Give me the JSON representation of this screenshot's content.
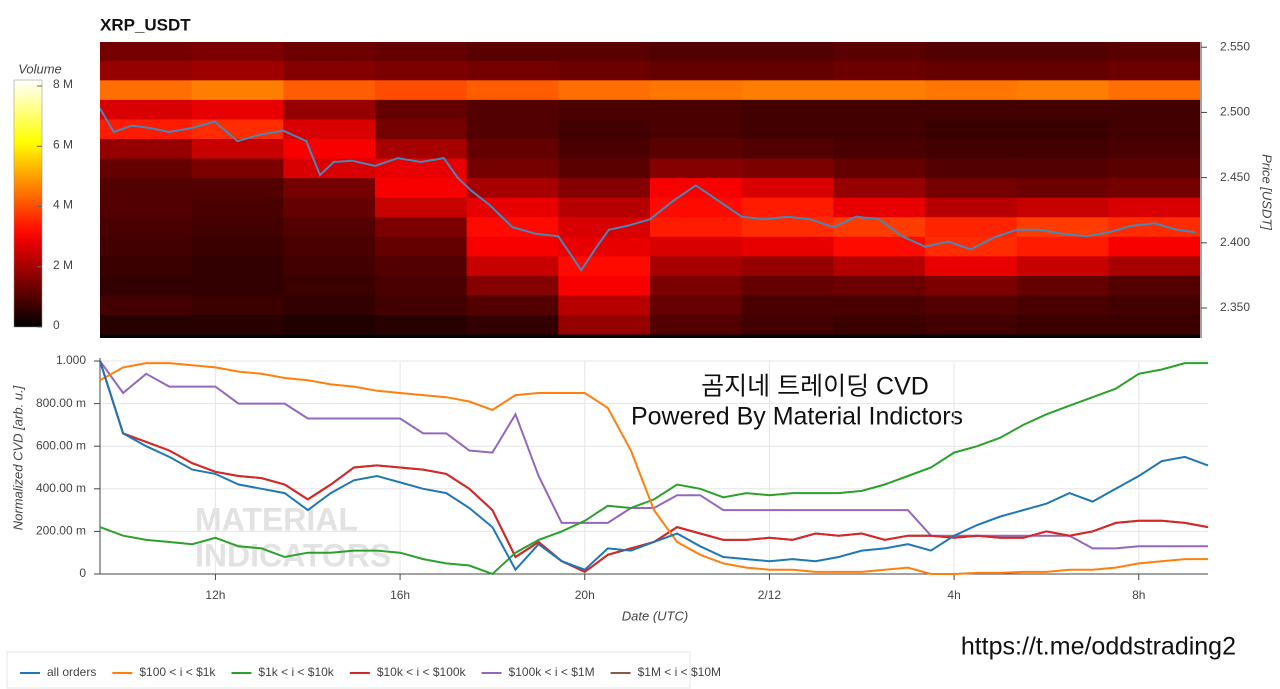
{
  "chart_data": [
    {
      "type": "heatmap",
      "title": "XRP_USDT",
      "xlim": [
        9.5,
        33.5
      ],
      "ylim": [
        2.327,
        2.554
      ],
      "x_bins": [
        9.5,
        11.5,
        13.5,
        15.5,
        17.5,
        19.5,
        21.5,
        23.5,
        25.5,
        27.5,
        29.5,
        31.5,
        33.5
      ],
      "y_bins": [
        2.33,
        2.345,
        2.36,
        2.375,
        2.39,
        2.405,
        2.42,
        2.435,
        2.45,
        2.465,
        2.48,
        2.495,
        2.51,
        2.525,
        2.54,
        2.555
      ],
      "z": [
        [
          0.5,
          0.5,
          0.4,
          0.5,
          0.6,
          1.8,
          1.0,
          0.8,
          0.7,
          0.8,
          0.7,
          0.7
        ],
        [
          0.8,
          0.7,
          0.6,
          0.8,
          1.0,
          2.2,
          1.2,
          0.9,
          0.9,
          1.0,
          0.9,
          0.8
        ],
        [
          0.6,
          0.6,
          0.7,
          0.9,
          1.6,
          3.0,
          1.5,
          1.2,
          1.3,
          1.5,
          1.2,
          1.0
        ],
        [
          0.7,
          0.6,
          0.8,
          1.0,
          2.4,
          3.2,
          2.0,
          1.8,
          2.2,
          2.8,
          2.4,
          2.0
        ],
        [
          0.8,
          0.7,
          0.9,
          1.2,
          3.0,
          2.8,
          2.6,
          2.8,
          3.2,
          3.6,
          3.4,
          3.0
        ],
        [
          0.9,
          0.8,
          1.0,
          1.5,
          3.2,
          2.6,
          3.4,
          3.6,
          3.8,
          3.5,
          3.8,
          3.6
        ],
        [
          1.0,
          0.9,
          1.2,
          2.4,
          2.8,
          2.2,
          3.2,
          3.4,
          2.8,
          2.2,
          2.4,
          2.6
        ],
        [
          1.0,
          1.0,
          1.4,
          3.0,
          2.0,
          1.6,
          3.0,
          2.6,
          1.8,
          1.4,
          1.3,
          1.4
        ],
        [
          1.2,
          1.5,
          2.6,
          2.8,
          1.4,
          1.1,
          1.6,
          1.5,
          1.2,
          1.0,
          1.0,
          1.1
        ],
        [
          1.8,
          2.4,
          3.0,
          2.0,
          1.2,
          0.9,
          1.1,
          1.0,
          0.9,
          0.8,
          0.8,
          0.9
        ],
        [
          3.4,
          3.6,
          2.6,
          1.4,
          1.0,
          0.8,
          0.9,
          0.8,
          0.8,
          0.7,
          0.7,
          0.8
        ],
        [
          2.6,
          2.8,
          1.8,
          1.2,
          1.0,
          0.9,
          0.9,
          0.8,
          0.8,
          0.8,
          0.8,
          0.8
        ],
        [
          4.4,
          4.6,
          4.2,
          4.0,
          4.2,
          4.4,
          4.5,
          4.6,
          4.6,
          4.5,
          4.6,
          4.4
        ],
        [
          1.8,
          1.9,
          1.6,
          1.5,
          1.4,
          1.3,
          1.2,
          1.2,
          1.3,
          1.2,
          1.2,
          1.3
        ],
        [
          1.4,
          1.5,
          1.3,
          1.2,
          1.1,
          1.1,
          1.0,
          1.0,
          1.1,
          1.0,
          1.0,
          1.1
        ]
      ],
      "colormap": "hot",
      "clim": [
        0,
        8.2
      ],
      "colorbar_label": "Volume",
      "colorbar_ticks": [
        0,
        {
          "value": 2,
          "label": "2 M"
        },
        {
          "value": 4,
          "label": "4 M"
        },
        {
          "value": 6,
          "label": "6 M"
        },
        {
          "value": 8,
          "label": "8 M"
        }
      ],
      "ylabel": "Price [USDT]",
      "yticks": [
        {
          "value": 2.35,
          "label": "2.350"
        },
        {
          "value": 2.4,
          "label": "2.400"
        },
        {
          "value": 2.45,
          "label": "2.450"
        },
        {
          "value": 2.5,
          "label": "2.500"
        },
        {
          "value": 2.55,
          "label": "2.550"
        }
      ],
      "price": {
        "color": "#4a86b8",
        "x": [
          9.5,
          9.8,
          10.2,
          10.6,
          11.0,
          11.5,
          12.0,
          12.5,
          13,
          13.5,
          14,
          14.3,
          14.6,
          15,
          15.5,
          16,
          16.5,
          17,
          17.3,
          17.6,
          18,
          18.5,
          19,
          19.5,
          20,
          20.3,
          20.6,
          21,
          21.5,
          22,
          22.5,
          23,
          23.5,
          24,
          24.5,
          25,
          25.5,
          26,
          26.5,
          27,
          27.5,
          28,
          28.5,
          29,
          29.5,
          30,
          30.5,
          31,
          31.5,
          32,
          32.5,
          33,
          33.4
        ],
        "values": [
          2.503,
          2.485,
          2.49,
          2.488,
          2.485,
          2.488,
          2.493,
          2.478,
          2.483,
          2.486,
          2.478,
          2.452,
          2.462,
          2.463,
          2.459,
          2.465,
          2.462,
          2.465,
          2.45,
          2.44,
          2.429,
          2.412,
          2.407,
          2.405,
          2.379,
          2.395,
          2.41,
          2.413,
          2.418,
          2.432,
          2.444,
          2.432,
          2.42,
          2.418,
          2.42,
          2.418,
          2.412,
          2.42,
          2.418,
          2.405,
          2.397,
          2.401,
          2.395,
          2.404,
          2.41,
          2.41,
          2.407,
          2.405,
          2.408,
          2.413,
          2.415,
          2.41,
          2.408
        ]
      }
    },
    {
      "type": "line",
      "xlabel": "Date (UTC)",
      "ylabel": "Normalized CVD [arb. u.]",
      "xlim": [
        9.5,
        33.5
      ],
      "ylim": [
        0,
        1
      ],
      "xticks": [
        {
          "value": 12,
          "label": "12h"
        },
        {
          "value": 16,
          "label": "16h"
        },
        {
          "value": 20,
          "label": "20h"
        },
        {
          "value": 24,
          "label": "2/12"
        },
        {
          "value": 28,
          "label": "4h"
        },
        {
          "value": 32,
          "label": "8h"
        }
      ],
      "yticks": [
        0,
        {
          "value": 0.2,
          "label": "200.00 m"
        },
        {
          "value": 0.4,
          "label": "400.00 m"
        },
        {
          "value": 0.6,
          "label": "600.00 m"
        },
        {
          "value": 0.8,
          "label": "800.00 m"
        },
        {
          "value": 1,
          "label": "1.000"
        }
      ],
      "grid": true,
      "legend": "bottom",
      "x": [
        9.5,
        10,
        10.5,
        11,
        11.5,
        12,
        12.5,
        13,
        13.5,
        14,
        14.5,
        15,
        15.5,
        16,
        16.5,
        17,
        17.5,
        18,
        18.5,
        19,
        19.5,
        20,
        20.5,
        21,
        21.5,
        22,
        22.5,
        23,
        23.5,
        24,
        24.5,
        25,
        25.5,
        26,
        26.5,
        27,
        27.5,
        28,
        28.5,
        29,
        29.5,
        30,
        30.5,
        31,
        31.5,
        32,
        32.5,
        33,
        33.5
      ],
      "series": [
        {
          "name": "all orders",
          "color": "#1f77b4",
          "values": [
            1.0,
            0.66,
            0.6,
            0.55,
            0.49,
            0.47,
            0.42,
            0.4,
            0.38,
            0.3,
            0.38,
            0.44,
            0.46,
            0.43,
            0.4,
            0.38,
            0.31,
            0.22,
            0.02,
            0.14,
            0.06,
            0.02,
            0.12,
            0.11,
            0.15,
            0.19,
            0.13,
            0.08,
            0.07,
            0.06,
            0.07,
            0.06,
            0.08,
            0.11,
            0.12,
            0.14,
            0.11,
            0.18,
            0.23,
            0.27,
            0.3,
            0.33,
            0.38,
            0.34,
            0.4,
            0.46,
            0.53,
            0.55,
            0.51
          ]
        },
        {
          "name": "$100 < i < $1k",
          "color": "#ff7f0e",
          "values": [
            0.91,
            0.97,
            0.99,
            0.99,
            0.98,
            0.97,
            0.95,
            0.94,
            0.92,
            0.91,
            0.89,
            0.88,
            0.86,
            0.85,
            0.84,
            0.83,
            0.81,
            0.77,
            0.84,
            0.85,
            0.85,
            0.85,
            0.78,
            0.58,
            0.3,
            0.15,
            0.09,
            0.05,
            0.03,
            0.02,
            0.02,
            0.01,
            0.01,
            0.01,
            0.02,
            0.03,
            0,
            0,
            0.005,
            0.005,
            0.01,
            0.01,
            0.02,
            0.02,
            0.03,
            0.05,
            0.06,
            0.07,
            0.07
          ]
        },
        {
          "name": "$1k < i < $10k",
          "color": "#2ca02c",
          "values": [
            0.22,
            0.18,
            0.16,
            0.15,
            0.14,
            0.17,
            0.13,
            0.12,
            0.08,
            0.1,
            0.1,
            0.11,
            0.11,
            0.1,
            0.07,
            0.05,
            0.04,
            0,
            0.1,
            0.16,
            0.2,
            0.25,
            0.32,
            0.31,
            0.35,
            0.42,
            0.4,
            0.36,
            0.38,
            0.37,
            0.38,
            0.38,
            0.38,
            0.39,
            0.42,
            0.46,
            0.5,
            0.57,
            0.6,
            0.64,
            0.7,
            0.75,
            0.79,
            0.83,
            0.87,
            0.94,
            0.96,
            0.99,
            0.99
          ]
        },
        {
          "name": "$10k < i < $100k",
          "color": "#d62728",
          "values": [
            1.0,
            0.66,
            0.62,
            0.58,
            0.52,
            0.48,
            0.46,
            0.45,
            0.42,
            0.35,
            0.42,
            0.5,
            0.51,
            0.5,
            0.49,
            0.47,
            0.4,
            0.3,
            0.08,
            0.15,
            0.06,
            0.01,
            0.09,
            0.12,
            0.15,
            0.22,
            0.19,
            0.16,
            0.16,
            0.17,
            0.16,
            0.19,
            0.18,
            0.19,
            0.16,
            0.18,
            0.18,
            0.17,
            0.18,
            0.17,
            0.17,
            0.2,
            0.18,
            0.2,
            0.24,
            0.25,
            0.25,
            0.24,
            0.22
          ]
        },
        {
          "name": "$100k < i < $1M",
          "color": "#9467bd",
          "values": [
            1.0,
            0.85,
            0.94,
            0.88,
            0.88,
            0.88,
            0.8,
            0.8,
            0.8,
            0.73,
            0.73,
            0.73,
            0.73,
            0.73,
            0.66,
            0.66,
            0.58,
            0.57,
            0.75,
            0.46,
            0.24,
            0.24,
            0.24,
            0.31,
            0.31,
            0.37,
            0.37,
            0.3,
            0.3,
            0.3,
            0.3,
            0.3,
            0.3,
            0.3,
            0.3,
            0.3,
            0.18,
            0.18,
            0.18,
            0.18,
            0.18,
            0.18,
            0.18,
            0.12,
            0.12,
            0.13,
            0.13,
            0.13,
            0.13
          ]
        },
        {
          "name": "$1M < i < $10M",
          "color": "#8c564b",
          "values": [
            1.0,
            0.66,
            0.62,
            0.58,
            0.52,
            0.48,
            0.46,
            0.45,
            0.42,
            0.35,
            0.42,
            0.5,
            0.51,
            0.5,
            0.49,
            0.47,
            0.4,
            0.3,
            0.08,
            0.15,
            0.06,
            0.01,
            0.09,
            0.12,
            0.15,
            0.22,
            0.19,
            0.16,
            0.16,
            0.17,
            0.16,
            0.19,
            0.18,
            0.19,
            0.16,
            0.18,
            0.18,
            0.17,
            0.18,
            0.17,
            0.17,
            0.2,
            0.18,
            0.2,
            0.24,
            0.25,
            0.25,
            0.24,
            0.22
          ]
        }
      ],
      "annotations": [
        "곰지네 트레이딩 CVD",
        "Powered By Material Indictors"
      ],
      "watermark": [
        "MATERIAL",
        "INDICATORS"
      ]
    }
  ],
  "footer_link": "https://t.me/oddstrading2"
}
